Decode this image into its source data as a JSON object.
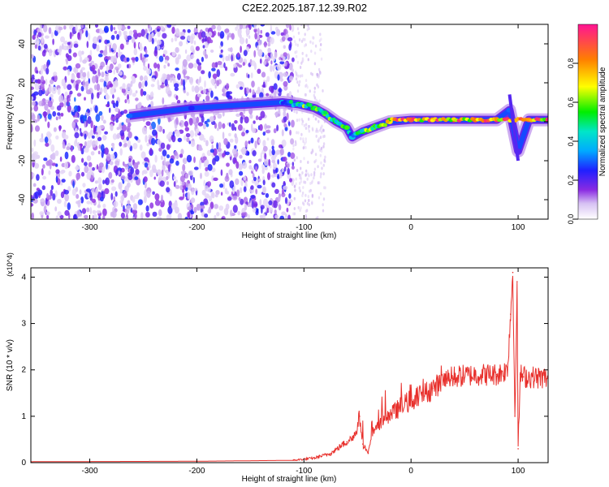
{
  "title": "C2E2.2025.187.12.39.R02",
  "chart_data": [
    {
      "type": "heatmap",
      "xlabel": "Height of straight line (km)",
      "ylabel": "Frequency (Hz)",
      "xlim": [
        -355,
        128
      ],
      "ylim": [
        -50,
        50
      ],
      "x_ticks": [
        -300,
        -200,
        -100,
        0,
        100
      ],
      "y_ticks": [
        -40,
        -20,
        0,
        20,
        40
      ],
      "colorbar": {
        "label": "Normalized spectral amplitude",
        "range": [
          0,
          1
        ],
        "ticks": [
          "0.0",
          "0.2",
          "0.4",
          "0.6",
          "0.8"
        ]
      },
      "noise_region": {
        "x_from": -355,
        "x_to": -110
      },
      "ridge": [
        {
          "x": -263,
          "y": 3,
          "a": 0.3
        },
        {
          "x": -205,
          "y": 7,
          "a": 0.25
        },
        {
          "x": -120,
          "y": 10,
          "a": 0.4
        },
        {
          "x": -105,
          "y": 9,
          "a": 0.55
        },
        {
          "x": -90,
          "y": 7,
          "a": 0.6
        },
        {
          "x": -80,
          "y": 4,
          "a": 0.6
        },
        {
          "x": -70,
          "y": 0,
          "a": 0.55
        },
        {
          "x": -60,
          "y": -3,
          "a": 0.5
        },
        {
          "x": -55,
          "y": -8,
          "a": 0.4
        },
        {
          "x": -45,
          "y": -5,
          "a": 0.55
        },
        {
          "x": -35,
          "y": -3,
          "a": 0.6
        },
        {
          "x": -20,
          "y": 0,
          "a": 0.7
        },
        {
          "x": 0,
          "y": 1,
          "a": 0.85
        },
        {
          "x": 20,
          "y": 1,
          "a": 0.8
        },
        {
          "x": 40,
          "y": 1,
          "a": 0.85
        },
        {
          "x": 60,
          "y": 1,
          "a": 0.9
        },
        {
          "x": 80,
          "y": 1,
          "a": 0.95
        },
        {
          "x": 92,
          "y": 6,
          "a": 0.3
        },
        {
          "x": 100,
          "y": -15,
          "a": 0.2
        },
        {
          "x": 110,
          "y": 1,
          "a": 0.95
        },
        {
          "x": 128,
          "y": 1,
          "a": 0.95
        }
      ]
    },
    {
      "type": "line",
      "xlabel": "Height of straight line (km)",
      "ylabel": "SNR (10 * v/v)",
      "y_multiplier": "(x10^4)",
      "xlim": [
        -355,
        128
      ],
      "ylim": [
        0,
        4.2
      ],
      "x_ticks": [
        -300,
        -200,
        -100,
        0,
        100
      ],
      "y_ticks": [
        0,
        1,
        2,
        3,
        4
      ],
      "series": [
        {
          "color": "#e8302c",
          "x": [
            -355,
            -200,
            -110,
            -90,
            -75,
            -60,
            -52,
            -48,
            -45,
            -40,
            -35,
            -28,
            -20,
            -10,
            0,
            10,
            20,
            30,
            40,
            60,
            80,
            90,
            93,
            95,
            97,
            99,
            100,
            102,
            105,
            110,
            128
          ],
          "y": [
            0.02,
            0.03,
            0.05,
            0.1,
            0.2,
            0.45,
            0.6,
            1.0,
            0.4,
            0.2,
            0.7,
            0.9,
            1.0,
            1.2,
            1.35,
            1.45,
            1.6,
            1.75,
            1.85,
            1.9,
            1.9,
            2.0,
            3.2,
            4.1,
            1.0,
            3.9,
            0.3,
            1.9,
            1.85,
            1.85,
            1.82
          ]
        }
      ]
    }
  ]
}
